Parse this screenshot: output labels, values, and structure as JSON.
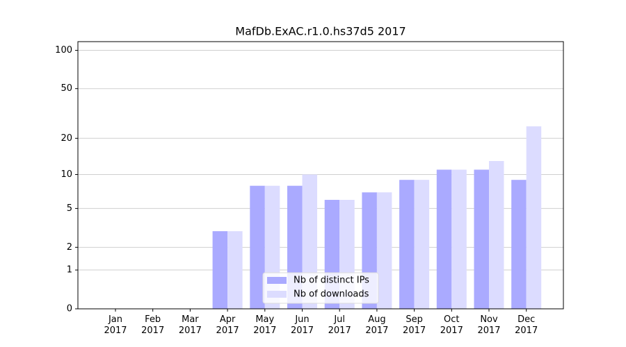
{
  "chart_data": {
    "type": "bar",
    "title": "MafDb.ExAC.r1.0.hs37d5 2017",
    "categories": [
      "Jan\n2017",
      "Feb\n2017",
      "Mar\n2017",
      "Apr\n2017",
      "May\n2017",
      "Jun\n2017",
      "Jul\n2017",
      "Aug\n2017",
      "Sep\n2017",
      "Oct\n2017",
      "Nov\n2017",
      "Dec\n2017"
    ],
    "series": [
      {
        "name": "Nb of distinct IPs",
        "color": "#aaaaff",
        "values": [
          0,
          0,
          0,
          3,
          8,
          8,
          6,
          7,
          9,
          11,
          11,
          9
        ]
      },
      {
        "name": "Nb of downloads",
        "color": "#dcdcff",
        "values": [
          0,
          0,
          0,
          3,
          8,
          10,
          6,
          7,
          9,
          11,
          13,
          25
        ]
      }
    ],
    "y_scale": "log1p",
    "ylim": [
      0,
      117
    ],
    "yticks": [
      0,
      1,
      2,
      5,
      10,
      20,
      50,
      100
    ],
    "grid": true,
    "legend": "lower center"
  }
}
